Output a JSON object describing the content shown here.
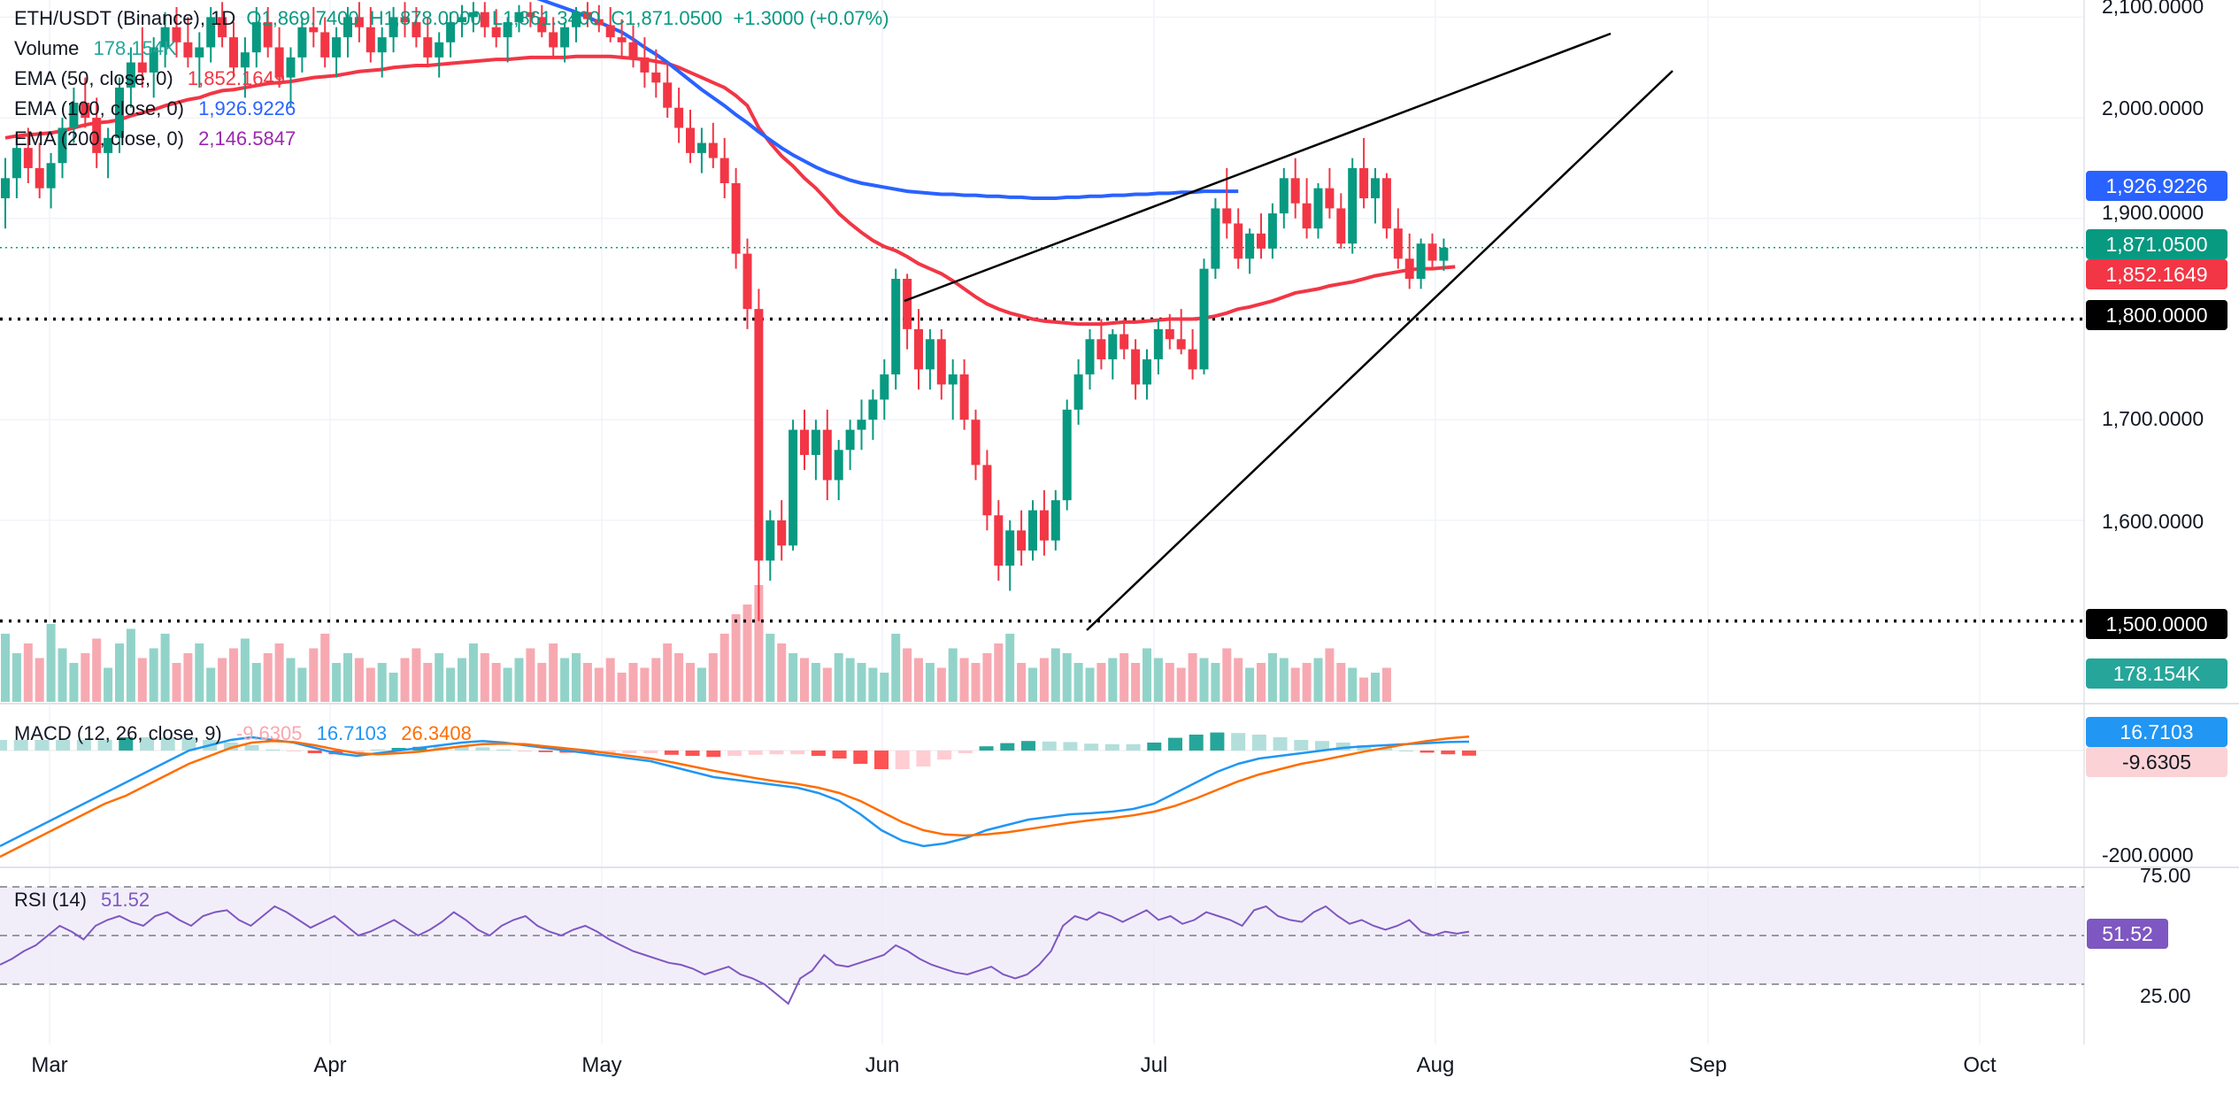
{
  "chart_data": {
    "type": "candlestick",
    "symbol": "ETH/USDT (Binance), 1D",
    "ohlc_header": {
      "o": "O1,869.7400",
      "h": "H1,878.0000",
      "l": "L1,861.3400",
      "c": "C1,871.0500",
      "chg": "+1.3000 (+0.07%)"
    },
    "price_axis": {
      "labels": [
        "2,100.0000",
        "2,000.0000",
        "1,900.0000",
        "1,700.0000",
        "1,600.0000"
      ],
      "range": [
        1470,
        2110
      ]
    },
    "months": [
      "Mar",
      "Apr",
      "May",
      "Jun",
      "Jul",
      "Aug",
      "Sep",
      "Oct"
    ],
    "levels": [
      {
        "price": 1800,
        "label": "1,800.0000"
      },
      {
        "price": 1500,
        "label": "1,500.0000"
      }
    ],
    "tags": {
      "ema100": "1,926.9226",
      "last": "1,871.0500",
      "ema50": "1,852.1649",
      "volume": "178.154K"
    },
    "legend": {
      "volume_label": "Volume",
      "volume_value": "178.154K",
      "ema50_label": "EMA (50, close, 0)",
      "ema50_value": "1,852.1649",
      "ema100_label": "EMA (100, close, 0)",
      "ema100_value": "1,926.9226",
      "ema200_label": "EMA (200, close, 0)",
      "ema200_value": "2,146.5847"
    },
    "candles": [
      [
        1920,
        1960,
        1890,
        1940
      ],
      [
        1940,
        1985,
        1920,
        1970
      ],
      [
        1970,
        1990,
        1935,
        1950
      ],
      [
        1950,
        1975,
        1920,
        1930
      ],
      [
        1930,
        1965,
        1910,
        1955
      ],
      [
        1955,
        2000,
        1940,
        1990
      ],
      [
        1990,
        2030,
        1975,
        2015
      ],
      [
        2015,
        2040,
        1990,
        2000
      ],
      [
        2000,
        2020,
        1950,
        1965
      ],
      [
        1965,
        1990,
        1940,
        1980
      ],
      [
        1980,
        2040,
        1965,
        2030
      ],
      [
        2030,
        2070,
        2010,
        2055
      ],
      [
        2055,
        2090,
        2030,
        2045
      ],
      [
        2045,
        2080,
        2020,
        2070
      ],
      [
        2070,
        2105,
        2050,
        2090
      ],
      [
        2090,
        2110,
        2060,
        2075
      ],
      [
        2075,
        2100,
        2050,
        2060
      ],
      [
        2060,
        2085,
        2030,
        2070
      ],
      [
        2070,
        2110,
        2055,
        2100
      ],
      [
        2100,
        2115,
        2070,
        2080
      ],
      [
        2080,
        2095,
        2040,
        2050
      ],
      [
        2050,
        2080,
        2020,
        2065
      ],
      [
        2065,
        2110,
        2050,
        2095
      ],
      [
        2095,
        2110,
        2060,
        2070
      ],
      [
        2070,
        2090,
        2030,
        2040
      ],
      [
        2040,
        2070,
        2010,
        2060
      ],
      [
        2060,
        2100,
        2045,
        2090
      ],
      [
        2090,
        2110,
        2070,
        2085
      ],
      [
        2085,
        2100,
        2050,
        2060
      ],
      [
        2060,
        2090,
        2040,
        2080
      ],
      [
        2080,
        2110,
        2060,
        2100
      ],
      [
        2100,
        2115,
        2075,
        2090
      ],
      [
        2090,
        2110,
        2055,
        2065
      ],
      [
        2065,
        2090,
        2040,
        2080
      ],
      [
        2080,
        2110,
        2065,
        2100
      ],
      [
        2100,
        2115,
        2080,
        2095
      ],
      [
        2095,
        2110,
        2070,
        2080
      ],
      [
        2080,
        2100,
        2050,
        2060
      ],
      [
        2060,
        2085,
        2040,
        2075
      ],
      [
        2075,
        2105,
        2060,
        2095
      ],
      [
        2095,
        2112,
        2080,
        2100
      ],
      [
        2100,
        2115,
        2085,
        2105
      ],
      [
        2105,
        2115,
        2080,
        2090
      ],
      [
        2090,
        2108,
        2070,
        2080
      ],
      [
        2080,
        2100,
        2055,
        2095
      ],
      [
        2095,
        2112,
        2085,
        2105
      ],
      [
        2105,
        2115,
        2090,
        2100
      ],
      [
        2100,
        2112,
        2080,
        2085
      ],
      [
        2085,
        2100,
        2060,
        2070
      ],
      [
        2070,
        2095,
        2055,
        2090
      ],
      [
        2090,
        2110,
        2075,
        2105
      ],
      [
        2105,
        2115,
        2090,
        2098
      ],
      [
        2098,
        2112,
        2085,
        2092
      ],
      [
        2092,
        2110,
        2075,
        2080
      ],
      [
        2080,
        2098,
        2060,
        2075
      ],
      [
        2075,
        2092,
        2050,
        2060
      ],
      [
        2060,
        2080,
        2030,
        2045
      ],
      [
        2045,
        2068,
        2020,
        2035
      ],
      [
        2035,
        2055,
        2000,
        2010
      ],
      [
        2010,
        2030,
        1975,
        1990
      ],
      [
        1990,
        2008,
        1955,
        1965
      ],
      [
        1965,
        1990,
        1945,
        1975
      ],
      [
        1975,
        1995,
        1950,
        1960
      ],
      [
        1960,
        1980,
        1920,
        1935
      ],
      [
        1935,
        1950,
        1850,
        1865
      ],
      [
        1865,
        1880,
        1790,
        1810
      ],
      [
        1810,
        1830,
        1500,
        1560
      ],
      [
        1560,
        1610,
        1540,
        1600
      ],
      [
        1600,
        1620,
        1560,
        1575
      ],
      [
        1575,
        1700,
        1570,
        1690
      ],
      [
        1690,
        1710,
        1650,
        1665
      ],
      [
        1665,
        1700,
        1640,
        1690
      ],
      [
        1690,
        1710,
        1620,
        1640
      ],
      [
        1640,
        1680,
        1620,
        1670
      ],
      [
        1670,
        1700,
        1650,
        1690
      ],
      [
        1690,
        1720,
        1670,
        1700
      ],
      [
        1700,
        1730,
        1680,
        1720
      ],
      [
        1720,
        1760,
        1700,
        1745
      ],
      [
        1745,
        1850,
        1730,
        1840
      ],
      [
        1840,
        1845,
        1770,
        1790
      ],
      [
        1790,
        1810,
        1730,
        1750
      ],
      [
        1750,
        1790,
        1730,
        1780
      ],
      [
        1780,
        1790,
        1720,
        1735
      ],
      [
        1735,
        1760,
        1700,
        1745
      ],
      [
        1745,
        1760,
        1690,
        1700
      ],
      [
        1700,
        1710,
        1640,
        1655
      ],
      [
        1655,
        1670,
        1590,
        1605
      ],
      [
        1605,
        1620,
        1540,
        1555
      ],
      [
        1555,
        1600,
        1530,
        1590
      ],
      [
        1590,
        1610,
        1555,
        1570
      ],
      [
        1570,
        1620,
        1560,
        1610
      ],
      [
        1610,
        1630,
        1565,
        1580
      ],
      [
        1580,
        1630,
        1570,
        1620
      ],
      [
        1620,
        1720,
        1610,
        1710
      ],
      [
        1710,
        1760,
        1695,
        1745
      ],
      [
        1745,
        1790,
        1730,
        1780
      ],
      [
        1780,
        1800,
        1750,
        1760
      ],
      [
        1760,
        1790,
        1740,
        1785
      ],
      [
        1785,
        1800,
        1760,
        1770
      ],
      [
        1770,
        1780,
        1720,
        1735
      ],
      [
        1735,
        1770,
        1720,
        1760
      ],
      [
        1760,
        1800,
        1745,
        1790
      ],
      [
        1790,
        1805,
        1770,
        1780
      ],
      [
        1780,
        1810,
        1765,
        1770
      ],
      [
        1770,
        1790,
        1740,
        1750
      ],
      [
        1750,
        1860,
        1745,
        1850
      ],
      [
        1850,
        1920,
        1840,
        1910
      ],
      [
        1910,
        1950,
        1880,
        1895
      ],
      [
        1895,
        1910,
        1850,
        1860
      ],
      [
        1860,
        1890,
        1845,
        1885
      ],
      [
        1885,
        1905,
        1860,
        1870
      ],
      [
        1870,
        1915,
        1860,
        1905
      ],
      [
        1905,
        1950,
        1890,
        1940
      ],
      [
        1940,
        1960,
        1900,
        1915
      ],
      [
        1915,
        1940,
        1880,
        1890
      ],
      [
        1890,
        1935,
        1880,
        1930
      ],
      [
        1930,
        1950,
        1900,
        1910
      ],
      [
        1910,
        1925,
        1870,
        1875
      ],
      [
        1875,
        1960,
        1865,
        1950
      ],
      [
        1950,
        1980,
        1910,
        1920
      ],
      [
        1920,
        1950,
        1895,
        1940
      ],
      [
        1940,
        1945,
        1880,
        1890
      ],
      [
        1890,
        1910,
        1850,
        1860
      ],
      [
        1860,
        1885,
        1830,
        1840
      ],
      [
        1840,
        1880,
        1830,
        1875
      ],
      [
        1875,
        1885,
        1850,
        1858
      ],
      [
        1858,
        1880,
        1848,
        1871
      ]
    ],
    "volumes": [
      70,
      50,
      60,
      45,
      80,
      55,
      40,
      50,
      65,
      35,
      60,
      75,
      45,
      55,
      70,
      40,
      50,
      60,
      35,
      45,
      55,
      65,
      40,
      50,
      60,
      45,
      35,
      55,
      70,
      40,
      50,
      45,
      35,
      40,
      30,
      45,
      55,
      40,
      50,
      35,
      45,
      60,
      50,
      40,
      35,
      45,
      55,
      40,
      60,
      45,
      50,
      40,
      35,
      45,
      30,
      40,
      35,
      45,
      60,
      50,
      40,
      35,
      50,
      70,
      90,
      100,
      120,
      70,
      60,
      50,
      45,
      40,
      35,
      50,
      45,
      40,
      35,
      30,
      70,
      55,
      45,
      40,
      35,
      55,
      45,
      40,
      50,
      60,
      70,
      40,
      35,
      45,
      55,
      50,
      40,
      35,
      40,
      45,
      50,
      40,
      55,
      45,
      40,
      35,
      50,
      45,
      40,
      55,
      45,
      35,
      40,
      50,
      45,
      35,
      40,
      45,
      55,
      40,
      35,
      25,
      30,
      35
    ],
    "ema50": [
      1980,
      1982,
      1983,
      1984,
      1985,
      1987,
      1990,
      1993,
      1995,
      1996,
      1998,
      2002,
      2005,
      2008,
      2012,
      2015,
      2018,
      2020,
      2024,
      2027,
      2028,
      2030,
      2032,
      2034,
      2035,
      2036,
      2038,
      2040,
      2041,
      2042,
      2044,
      2046,
      2047,
      2048,
      2050,
      2051,
      2052,
      2052,
      2053,
      2054,
      2055,
      2056,
      2057,
      2058,
      2058,
      2059,
      2060,
      2060,
      2060,
      2060,
      2061,
      2061,
      2061,
      2061,
      2060,
      2059,
      2058,
      2056,
      2054,
      2050,
      2045,
      2040,
      2035,
      2030,
      2022,
      2012,
      1990,
      1975,
      1962,
      1952,
      1940,
      1930,
      1918,
      1905,
      1895,
      1886,
      1878,
      1872,
      1868,
      1862,
      1855,
      1850,
      1845,
      1838,
      1830,
      1822,
      1815,
      1810,
      1806,
      1803,
      1800,
      1798,
      1797,
      1796,
      1795,
      1795,
      1795,
      1796,
      1797,
      1797,
      1798,
      1799,
      1800,
      1800,
      1800,
      1801,
      1803,
      1806,
      1810,
      1812,
      1815,
      1818,
      1822,
      1826,
      1828,
      1830,
      1833,
      1835,
      1837,
      1840,
      1843,
      1845,
      1847,
      1849,
      1850,
      1850,
      1851,
      1852
    ],
    "ema100": [
      2160,
      2162,
      2163,
      2164,
      2165,
      2166,
      2167,
      2168,
      2169,
      2170,
      2171,
      2172,
      2173,
      2174,
      2175,
      2175,
      2175,
      2175,
      2175,
      2175,
      2175,
      2175,
      2175,
      2175,
      2174,
      2173,
      2172,
      2171,
      2170,
      2168,
      2166,
      2164,
      2162,
      2160,
      2158,
      2155,
      2152,
      2149,
      2146,
      2143,
      2140,
      2137,
      2134,
      2131,
      2128,
      2125,
      2121,
      2117,
      2113,
      2109,
      2105,
      2100,
      2095,
      2090,
      2085,
      2078,
      2070,
      2063,
      2055,
      2046,
      2037,
      2028,
      2020,
      2012,
      2003,
      1995,
      1986,
      1978,
      1970,
      1963,
      1957,
      1951,
      1946,
      1942,
      1938,
      1935,
      1933,
      1931,
      1929,
      1927,
      1926,
      1925,
      1924,
      1924,
      1923,
      1923,
      1922,
      1922,
      1921,
      1921,
      1920,
      1920,
      1920,
      1921,
      1921,
      1922,
      1922,
      1923,
      1923,
      1924,
      1924,
      1925,
      1925,
      1926,
      1926,
      1927,
      1927,
      1927,
      1927
    ],
    "rsi": [
      35,
      38,
      42,
      45,
      50,
      55,
      52,
      48,
      55,
      58,
      60,
      57,
      55,
      60,
      62,
      58,
      55,
      60,
      62,
      63,
      58,
      55,
      60,
      65,
      62,
      58,
      54,
      57,
      60,
      55,
      50,
      52,
      55,
      58,
      54,
      50,
      53,
      57,
      62,
      58,
      53,
      50,
      55,
      58,
      60,
      55,
      52,
      50,
      53,
      55,
      52,
      48,
      45,
      42,
      40,
      38,
      36,
      35,
      33,
      30,
      32,
      34,
      30,
      28,
      25,
      20,
      15,
      28,
      32,
      40,
      35,
      34,
      36,
      38,
      40,
      45,
      42,
      38,
      35,
      33,
      31,
      30,
      32,
      34,
      30,
      28,
      30,
      35,
      42,
      55,
      60,
      58,
      62,
      60,
      57,
      60,
      63,
      58,
      60,
      56,
      58,
      62,
      60,
      58,
      55,
      63,
      65,
      60,
      58,
      57,
      62,
      65,
      60,
      56,
      58,
      55,
      53,
      55,
      58,
      52,
      50,
      52,
      51,
      52
    ],
    "macd": [
      -180,
      -160,
      -140,
      -120,
      -100,
      -80,
      -60,
      -40,
      -20,
      0,
      10,
      20,
      25,
      20,
      15,
      5,
      -5,
      -10,
      -5,
      0,
      5,
      10,
      15,
      18,
      15,
      10,
      5,
      0,
      -5,
      -10,
      -15,
      -20,
      -30,
      -40,
      -50,
      -55,
      -60,
      -65,
      -70,
      -80,
      -95,
      -120,
      -150,
      -170,
      -180,
      -175,
      -165,
      -150,
      -140,
      -130,
      -125,
      -120,
      -118,
      -115,
      -110,
      -100,
      -80,
      -60,
      -40,
      -25,
      -15,
      -10,
      -5,
      0,
      5,
      8,
      10,
      12,
      14,
      16,
      16.71
    ],
    "macd_signal": [
      -200,
      -180,
      -160,
      -140,
      -120,
      -100,
      -85,
      -65,
      -45,
      -25,
      -10,
      5,
      15,
      18,
      16,
      10,
      2,
      -5,
      -7,
      -5,
      -2,
      3,
      8,
      12,
      13,
      12,
      8,
      4,
      0,
      -5,
      -10,
      -15,
      -22,
      -30,
      -38,
      -45,
      -52,
      -58,
      -63,
      -70,
      -80,
      -95,
      -115,
      -135,
      -150,
      -158,
      -160,
      -158,
      -154,
      -148,
      -142,
      -136,
      -131,
      -127,
      -122,
      -115,
      -104,
      -90,
      -74,
      -58,
      -45,
      -35,
      -25,
      -18,
      -10,
      -2,
      5,
      12,
      18,
      23,
      26.34
    ],
    "macd_header": {
      "hist": "-9.6305",
      "macd": "16.7103",
      "signal": "26.3408"
    },
    "macd_tags": {
      "macd": "16.7103",
      "hist": "-9.6305"
    },
    "macd_axis": "-200.0000",
    "rsi_axis": {
      "upper": "75.00",
      "lower": "25.00"
    }
  },
  "labels": {
    "macd_title": "MACD (12, 26, close, 9)",
    "rsi_title": "RSI (14)",
    "rsi_value": "51.52"
  },
  "colors": {
    "up": "#089981",
    "down": "#f23645",
    "ema50": "#f23645",
    "ema100": "#2962ff",
    "ema200": "#9c27b0",
    "macd": "#2196f3",
    "signal": "#ff6d00",
    "rsi": "#7e57c2"
  }
}
